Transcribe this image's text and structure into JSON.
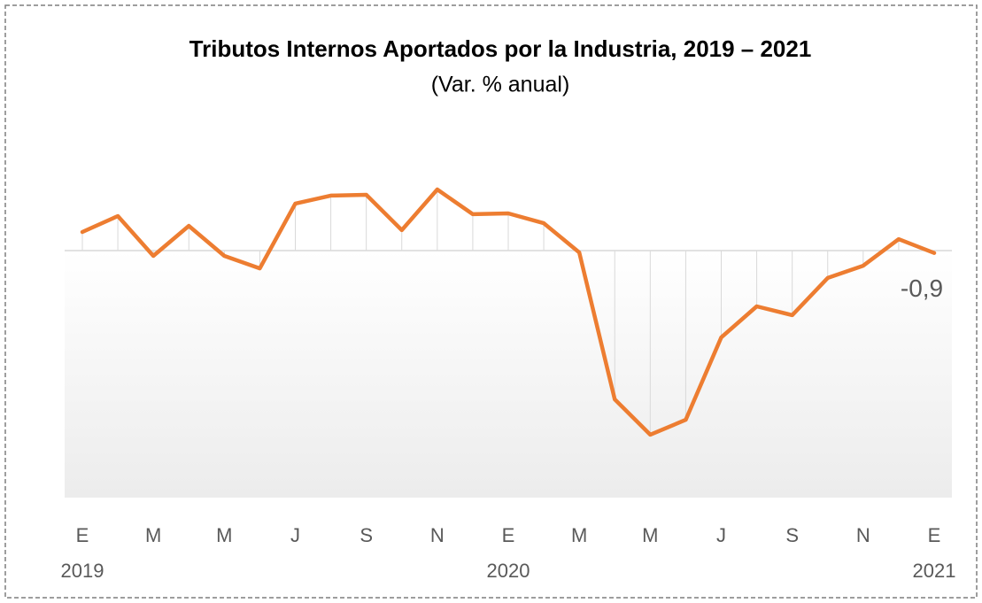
{
  "chart_data": {
    "type": "line",
    "title": "Tributos Internos Aportados por la Industria, 2019 – 2021",
    "subtitle": "(Var. % anual)",
    "categories": [
      "E",
      null,
      "M",
      null,
      "M",
      null,
      "J",
      null,
      "S",
      null,
      "N",
      null,
      "E",
      null,
      "M",
      null,
      "M",
      null,
      "J",
      null,
      "S",
      null,
      "N",
      null,
      "E"
    ],
    "years": [
      "2019",
      null,
      null,
      null,
      null,
      null,
      null,
      null,
      null,
      null,
      null,
      null,
      "2020",
      null,
      null,
      null,
      null,
      null,
      null,
      null,
      null,
      null,
      null,
      null,
      "2021"
    ],
    "series": [
      {
        "name": "Var. % anual",
        "color": "#ed7d31",
        "values": [
          7,
          13,
          -2,
          9.3,
          -2,
          -6.7,
          17.7,
          20.7,
          21,
          7.7,
          23,
          13.7,
          14,
          10.3,
          -0.7,
          -56,
          -69.3,
          -63.7,
          -32.7,
          -21,
          -24.3,
          -10.3,
          -5.7,
          4.3,
          -0.9
        ],
        "value_labels": [
          null,
          null,
          null,
          null,
          null,
          null,
          null,
          null,
          null,
          null,
          null,
          null,
          null,
          null,
          null,
          null,
          null,
          null,
          null,
          null,
          null,
          null,
          null,
          null,
          "-0,9"
        ]
      }
    ],
    "ylim": [
      -93,
      31
    ]
  }
}
